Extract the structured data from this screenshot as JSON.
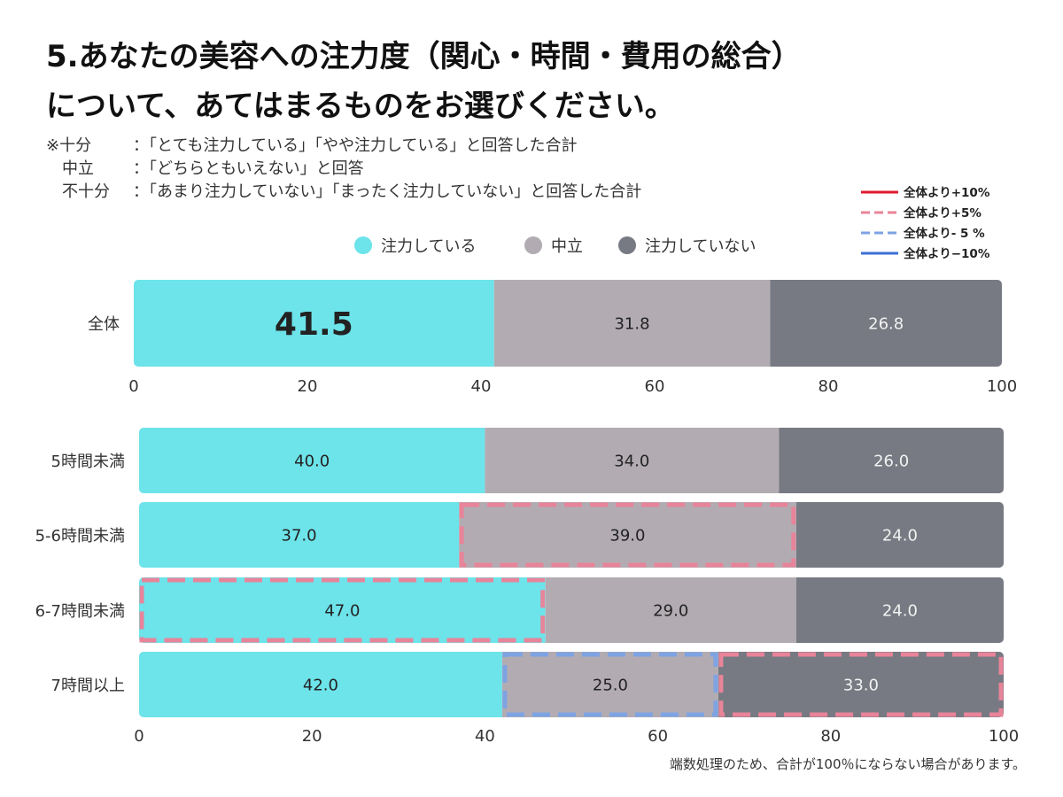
{
  "title": {
    "line1": "5.あなたの美容への注力度（関心・時間・費用の総合）",
    "line2": "について、あてはまるものをお選びください。"
  },
  "notes": [
    {
      "term": "※十分",
      "desc": "：「とても注力している」「やや注力している」と回答した合計"
    },
    {
      "term": "中立",
      "desc": "：「どちらともいえない」と回答"
    },
    {
      "term": "不十分",
      "desc": "：「あまり注力していない」「まったく注力していない」と回答した合計"
    }
  ],
  "footnote": "端数処理のため、合計が100％にならない場合があります。",
  "colors": {
    "series1": "#6de3ea",
    "series2": "#b2acb2",
    "series3": "#777a82",
    "plus10": "#e0192f",
    "plus5": "#e8849a",
    "minus5": "#7ea3e3",
    "minus10": "#3d6fd6"
  },
  "chart_data": {
    "type": "bar",
    "orientation": "horizontal",
    "stacked": true,
    "xlim": [
      0,
      100
    ],
    "ticks": [
      0,
      20,
      40,
      60,
      80,
      100
    ],
    "legend": {
      "placement": "top",
      "items": [
        "注力している",
        "中立",
        "注力していない"
      ]
    },
    "highlight_legend": {
      "placement": "top-right",
      "items": [
        {
          "label": "全体より+10%",
          "style": "solid",
          "color": "#e0192f"
        },
        {
          "label": "全体より+5%",
          "style": "dashed",
          "color": "#e8849a"
        },
        {
          "label": "全体より- 5 %",
          "style": "dashed",
          "color": "#7ea3e3"
        },
        {
          "label": "全体より−10%",
          "style": "solid",
          "color": "#3d6fd6"
        }
      ]
    },
    "panels": [
      {
        "categories": [
          "全体"
        ],
        "series": [
          {
            "name": "注力している",
            "values": [
              41.5
            ]
          },
          {
            "name": "中立",
            "values": [
              31.8
            ]
          },
          {
            "name": "注力していない",
            "values": [
              26.8
            ]
          }
        ],
        "highlights": []
      },
      {
        "categories": [
          "5時間未満",
          "5-6時間未満",
          "6-7時間未満",
          "7時間以上"
        ],
        "series": [
          {
            "name": "注力している",
            "values": [
              40.0,
              37.0,
              47.0,
              42.0
            ]
          },
          {
            "name": "中立",
            "values": [
              34.0,
              39.0,
              29.0,
              25.0
            ]
          },
          {
            "name": "注力していない",
            "values": [
              26.0,
              24.0,
              24.0,
              33.0
            ]
          }
        ],
        "highlights": [
          {
            "category": "5-6時間未満",
            "series": "中立",
            "type": "plus5"
          },
          {
            "category": "6-7時間未満",
            "series": "注力している",
            "type": "plus5"
          },
          {
            "category": "7時間以上",
            "series": "中立",
            "type": "minus5"
          },
          {
            "category": "7時間以上",
            "series": "注力していない",
            "type": "plus5"
          }
        ]
      }
    ]
  }
}
